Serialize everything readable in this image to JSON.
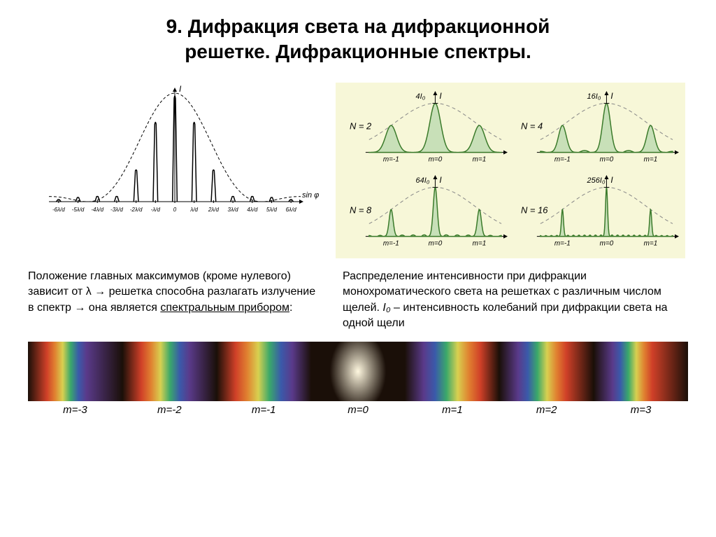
{
  "title_line1": "9. Дифракция света на дифракционной",
  "title_line2": "решетке. Дифракционные спектры.",
  "left_description_1": "Положение главных максимумов (кроме нулевого) зависит от λ → решетка способна разлагать излучение в спектр → она является ",
  "left_description_underlined": "спектральным прибором",
  "left_description_2": ":",
  "right_description": "Распределение интенсивности при дифракции монохроматического света на решетках с различным числом щелей. ",
  "right_description_i0": "I₀",
  "right_description_tail": " – интенсивность колебаний при дифракции света на одной щели",
  "envelope_chart": {
    "type": "line",
    "xlabel": "sin φ",
    "ylabel": "I",
    "x_ticks": [
      "-6λ/d",
      "-5λ/d",
      "-4λ/d",
      "-3λ/d",
      "-2λ/d",
      "-λ/d",
      "0",
      "λ/d",
      "2λ/d",
      "3λ/d",
      "4λ/d",
      "5λ/d",
      "6λ/d"
    ],
    "envelope_color": "#000000",
    "peak_color": "#000000",
    "background": "#ffffff",
    "line_width": 1.5,
    "peaks_x": [
      -6,
      -5,
      -4,
      -3,
      -2,
      -1,
      0,
      1,
      2,
      3,
      4,
      5,
      6
    ],
    "envelope_heights": [
      0.02,
      0.04,
      0.05,
      0.05,
      0.3,
      0.75,
      1.0,
      0.75,
      0.3,
      0.05,
      0.05,
      0.04,
      0.02
    ],
    "side_lobe_centers": [
      -5,
      5
    ],
    "side_lobe_height": 0.06
  },
  "grating_panels": {
    "background": "#f7f7d8",
    "curve_color": "#3a7a2a",
    "fill_color": "#c8e0b8",
    "envelope_color": "#888888",
    "axis_color": "#000000",
    "panels": [
      {
        "N": 2,
        "peak_label": "4I₀",
        "m_labels": [
          "m=-1",
          "m=0",
          "m=1"
        ],
        "sharpness": 0.25
      },
      {
        "N": 4,
        "peak_label": "16I₀",
        "m_labels": [
          "m=-1",
          "m=0",
          "m=1"
        ],
        "sharpness": 0.5
      },
      {
        "N": 8,
        "peak_label": "64I₀",
        "m_labels": [
          "m=-1",
          "m=0",
          "m=1"
        ],
        "sharpness": 0.8
      },
      {
        "N": 16,
        "peak_label": "256I₀",
        "m_labels": [
          "m=-1",
          "m=0",
          "m=1"
        ],
        "sharpness": 0.95
      }
    ]
  },
  "spectrum": {
    "orders": [
      -3,
      -2,
      -1,
      0,
      1,
      2,
      3
    ],
    "labels": [
      "m=-3",
      "m=-2",
      "m=-1",
      "m=0",
      "m=1",
      "m=2",
      "m=3"
    ],
    "dark_color": "#1a0f08",
    "center_color": "#fff8e0",
    "rainbow_colors": [
      "#5a3a8a",
      "#3a5aaa",
      "#3aa86a",
      "#d8d050",
      "#e08030",
      "#d04028"
    ],
    "rainbow_colors_rev": [
      "#d04028",
      "#e08030",
      "#d8d050",
      "#3aa86a",
      "#3a5aaa",
      "#5a3a8a"
    ]
  }
}
